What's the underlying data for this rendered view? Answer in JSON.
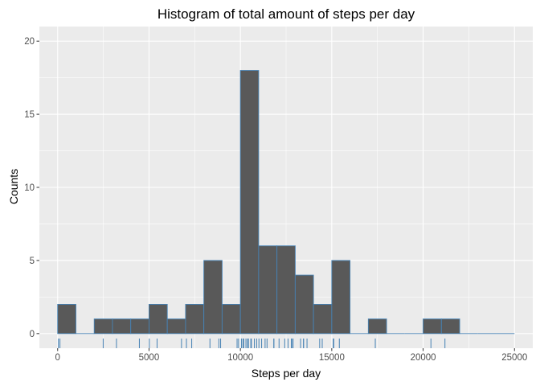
{
  "chart_data": {
    "type": "bar",
    "subtype": "histogram",
    "title": "Histogram of total amount of steps per day",
    "xlabel": "Steps per day",
    "ylabel": "Counts",
    "xlim": [
      -1000,
      26000
    ],
    "ylim": [
      -1,
      21
    ],
    "binwidth": 1000,
    "bins": [
      {
        "x0": 0,
        "x1": 1000,
        "count": 2
      },
      {
        "x0": 1000,
        "x1": 2000,
        "count": 0
      },
      {
        "x0": 2000,
        "x1": 3000,
        "count": 1
      },
      {
        "x0": 3000,
        "x1": 4000,
        "count": 1
      },
      {
        "x0": 4000,
        "x1": 5000,
        "count": 1
      },
      {
        "x0": 5000,
        "x1": 6000,
        "count": 2
      },
      {
        "x0": 6000,
        "x1": 7000,
        "count": 1
      },
      {
        "x0": 7000,
        "x1": 8000,
        "count": 2
      },
      {
        "x0": 8000,
        "x1": 9000,
        "count": 5
      },
      {
        "x0": 9000,
        "x1": 10000,
        "count": 2
      },
      {
        "x0": 10000,
        "x1": 11000,
        "count": 18
      },
      {
        "x0": 11000,
        "x1": 12000,
        "count": 6
      },
      {
        "x0": 12000,
        "x1": 13000,
        "count": 6
      },
      {
        "x0": 13000,
        "x1": 14000,
        "count": 4
      },
      {
        "x0": 14000,
        "x1": 15000,
        "count": 2
      },
      {
        "x0": 15000,
        "x1": 16000,
        "count": 5
      },
      {
        "x0": 16000,
        "x1": 17000,
        "count": 0
      },
      {
        "x0": 17000,
        "x1": 18000,
        "count": 1
      },
      {
        "x0": 18000,
        "x1": 19000,
        "count": 0
      },
      {
        "x0": 19000,
        "x1": 20000,
        "count": 0
      },
      {
        "x0": 20000,
        "x1": 21000,
        "count": 1
      },
      {
        "x0": 21000,
        "x1": 22000,
        "count": 1
      },
      {
        "x0": 22000,
        "x1": 23000,
        "count": 0
      },
      {
        "x0": 23000,
        "x1": 24000,
        "count": 0
      },
      {
        "x0": 24000,
        "x1": 25000,
        "count": 0
      }
    ],
    "rug": [
      41,
      126,
      2492,
      3219,
      4472,
      5018,
      5441,
      6778,
      7047,
      7336,
      8334,
      8821,
      8918,
      9819,
      9900,
      10056,
      10139,
      10183,
      10304,
      10395,
      10439,
      10571,
      10600,
      10765,
      10890,
      11015,
      11162,
      11352,
      11458,
      11829,
      11834,
      12116,
      12426,
      12608,
      12787,
      12811,
      12883,
      13294,
      13452,
      13460,
      13646,
      14339,
      14478,
      15084,
      15098,
      15110,
      15414,
      17382,
      20427,
      21194
    ],
    "x_ticks": [
      {
        "value": 0,
        "label": "0"
      },
      {
        "value": 5000,
        "label": "5000"
      },
      {
        "value": 10000,
        "label": "10000"
      },
      {
        "value": 15000,
        "label": "15000"
      },
      {
        "value": 20000,
        "label": "20000"
      },
      {
        "value": 25000,
        "label": "25000"
      }
    ],
    "y_ticks": [
      {
        "value": 0,
        "label": "0"
      },
      {
        "value": 5,
        "label": "5"
      },
      {
        "value": 10,
        "label": "10"
      },
      {
        "value": 15,
        "label": "15"
      },
      {
        "value": 20,
        "label": "20"
      }
    ],
    "grid": true,
    "legend": "none",
    "colors": {
      "panel": "#ebebeb",
      "grid_major": "#ffffff",
      "bar_fill": "#595959",
      "bar_outline": "#4682b4",
      "rug": "#4682b4"
    }
  }
}
